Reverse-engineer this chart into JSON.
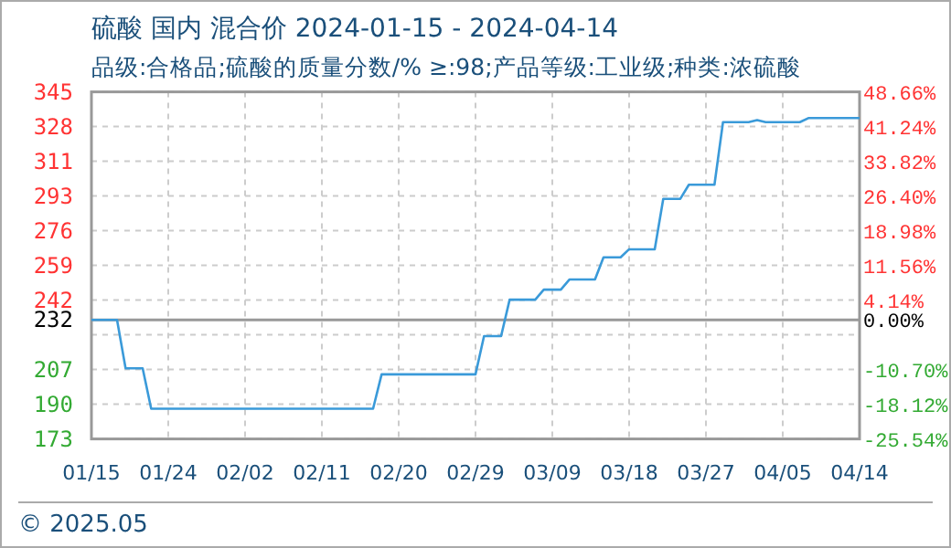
{
  "chart_data": {
    "type": "line",
    "title": "硫酸 国内 混合价 2024-01-15 - 2024-04-14",
    "subtitle": "品级:合格品;硫酸的质量分数/% ≥:98;产品等级:工业级;种类:浓硫酸",
    "x": [
      "2024-01-15",
      "2024-01-18",
      "2024-01-19",
      "2024-01-21",
      "2024-01-22",
      "2024-02-17",
      "2024-02-18",
      "2024-02-29",
      "2024-03-01",
      "2024-03-03",
      "2024-03-04",
      "2024-03-07",
      "2024-03-08",
      "2024-03-10",
      "2024-03-11",
      "2024-03-14",
      "2024-03-15",
      "2024-03-17",
      "2024-03-18",
      "2024-03-21",
      "2024-03-22",
      "2024-03-24",
      "2024-03-25",
      "2024-03-28",
      "2024-03-29",
      "2024-04-01",
      "2024-04-02",
      "2024-04-03",
      "2024-04-07",
      "2024-04-08",
      "2024-04-14"
    ],
    "series": [
      {
        "color": "#3a9ad9",
        "values": [
          232,
          232,
          208,
          208,
          188,
          188,
          205,
          205,
          224,
          224,
          242,
          242,
          247,
          247,
          252,
          252,
          263,
          263,
          267,
          267,
          292,
          292,
          299,
          299,
          330,
          330,
          331,
          330,
          330,
          332,
          332
        ]
      }
    ],
    "xlim": [
      "2024-01-15",
      "2024-04-14"
    ],
    "xticks": [
      {
        "value": "2024-01-15",
        "label": "01/15"
      },
      {
        "value": "2024-01-24",
        "label": "01/24"
      },
      {
        "value": "2024-02-02",
        "label": "02/02"
      },
      {
        "value": "2024-02-11",
        "label": "02/11"
      },
      {
        "value": "2024-02-20",
        "label": "02/20"
      },
      {
        "value": "2024-02-29",
        "label": "02/29"
      },
      {
        "value": "2024-03-09",
        "label": "03/09"
      },
      {
        "value": "2024-03-18",
        "label": "03/18"
      },
      {
        "value": "2024-03-27",
        "label": "03/27"
      },
      {
        "value": "2024-04-05",
        "label": "04/05"
      },
      {
        "value": "2024-04-14",
        "label": "04/14"
      }
    ],
    "ylim": [
      173,
      345
    ],
    "yticks": [
      173,
      {
        "value": 190.2,
        "label": "190"
      },
      {
        "value": 207.4,
        "label": "207"
      },
      {
        "value": 224.6,
        "label": null
      },
      {
        "value": 241.8,
        "label": "242"
      },
      259,
      {
        "value": 276.2,
        "label": "276"
      },
      {
        "value": 293.4,
        "label": "293"
      },
      {
        "value": 310.6,
        "label": "311"
      },
      {
        "value": 327.8,
        "label": "328"
      },
      345
    ],
    "y2lim": [
      -25.54,
      48.66
    ],
    "y2ticks": [
      {
        "value": -25.54,
        "label": "-25.54%"
      },
      {
        "value": -18.12,
        "label": "-18.12%"
      },
      {
        "value": -10.7,
        "label": "-10.70%"
      },
      {
        "value": 0,
        "label": "0.00%"
      },
      {
        "value": 4.14,
        "label": "4.14%"
      },
      {
        "value": 11.56,
        "label": "11.56%"
      },
      {
        "value": 18.98,
        "label": "18.98%"
      },
      {
        "value": 26.4,
        "label": "26.40%"
      },
      {
        "value": 33.82,
        "label": "33.82%"
      },
      {
        "value": 41.24,
        "label": "41.24%"
      },
      {
        "value": 48.66,
        "label": "48.66%"
      }
    ],
    "ref_lines": [
      {
        "axis": "y",
        "value": 232,
        "label": "232",
        "color": "#999999"
      }
    ],
    "grid": true,
    "line_style": "solid",
    "marker": "none",
    "annotations": [
      "© 2025.05"
    ]
  }
}
